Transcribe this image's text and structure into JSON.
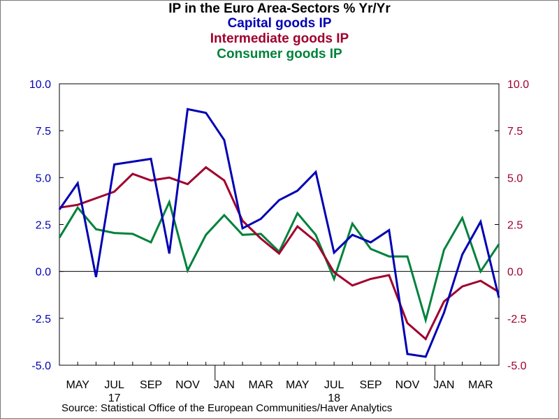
{
  "chart_data": {
    "type": "line",
    "title": "IP in the Euro Area-Sectors % Yr/Yr",
    "source": "Source:  Statistical Office of the European Communities/Haver Analytics",
    "x": [
      "2017-04",
      "2017-05",
      "2017-06",
      "2017-07",
      "2017-08",
      "2017-09",
      "2017-10",
      "2017-11",
      "2017-12",
      "2018-01",
      "2018-02",
      "2018-03",
      "2018-04",
      "2018-05",
      "2018-06",
      "2018-07",
      "2018-08",
      "2018-09",
      "2018-10",
      "2018-11",
      "2018-12",
      "2019-01",
      "2019-02",
      "2019-03",
      "2019-04"
    ],
    "x_tick_labels": [
      {
        "month": "MAY",
        "year": "",
        "index": 1
      },
      {
        "month": "JUL",
        "year": "17",
        "index": 3
      },
      {
        "month": "SEP",
        "year": "",
        "index": 5
      },
      {
        "month": "NOV",
        "year": "",
        "index": 7
      },
      {
        "month": "JAN",
        "year": "",
        "index": 9
      },
      {
        "month": "MAR",
        "year": "",
        "index": 11
      },
      {
        "month": "MAY",
        "year": "",
        "index": 13
      },
      {
        "month": "JUL",
        "year": "18",
        "index": 15
      },
      {
        "month": "SEP",
        "year": "",
        "index": 17
      },
      {
        "month": "NOV",
        "year": "",
        "index": 19
      },
      {
        "month": "JAN",
        "year": "",
        "index": 21
      },
      {
        "month": "MAR",
        "year": "",
        "index": 23
      }
    ],
    "y_ticks": [
      "10.0",
      "7.5",
      "5.0",
      "2.5",
      "0.0",
      "-2.5",
      "-5.0"
    ],
    "ylim": [
      -5.0,
      10.0
    ],
    "zero_line": true,
    "grid": false,
    "series": [
      {
        "name": "Capital goods IP",
        "color": "#0000b4",
        "values": [
          3.3,
          4.7,
          -0.3,
          5.7,
          5.85,
          6.0,
          0.95,
          8.65,
          8.45,
          7.0,
          2.3,
          2.8,
          3.8,
          4.3,
          5.3,
          1.0,
          1.95,
          1.55,
          2.2,
          -4.4,
          -4.55,
          -2.2,
          0.9,
          2.65,
          -1.4
        ]
      },
      {
        "name": "Intermediate goods IP",
        "color": "#a0002d",
        "values": [
          3.4,
          3.55,
          3.9,
          4.25,
          5.2,
          4.85,
          5.0,
          4.65,
          5.55,
          4.85,
          2.7,
          1.75,
          0.95,
          2.4,
          1.6,
          -0.05,
          -0.75,
          -0.4,
          -0.2,
          -2.75,
          -3.6,
          -1.6,
          -0.8,
          -0.5,
          -1.1
        ]
      },
      {
        "name": "Consumer goods IP",
        "color": "#00823c",
        "values": [
          1.8,
          3.4,
          2.25,
          2.05,
          2.0,
          1.55,
          3.7,
          0.05,
          1.95,
          3.0,
          1.95,
          2.0,
          1.05,
          3.1,
          1.95,
          -0.4,
          2.55,
          1.2,
          0.8,
          0.8,
          -2.6,
          1.15,
          2.85,
          0.0,
          1.45
        ]
      }
    ]
  }
}
